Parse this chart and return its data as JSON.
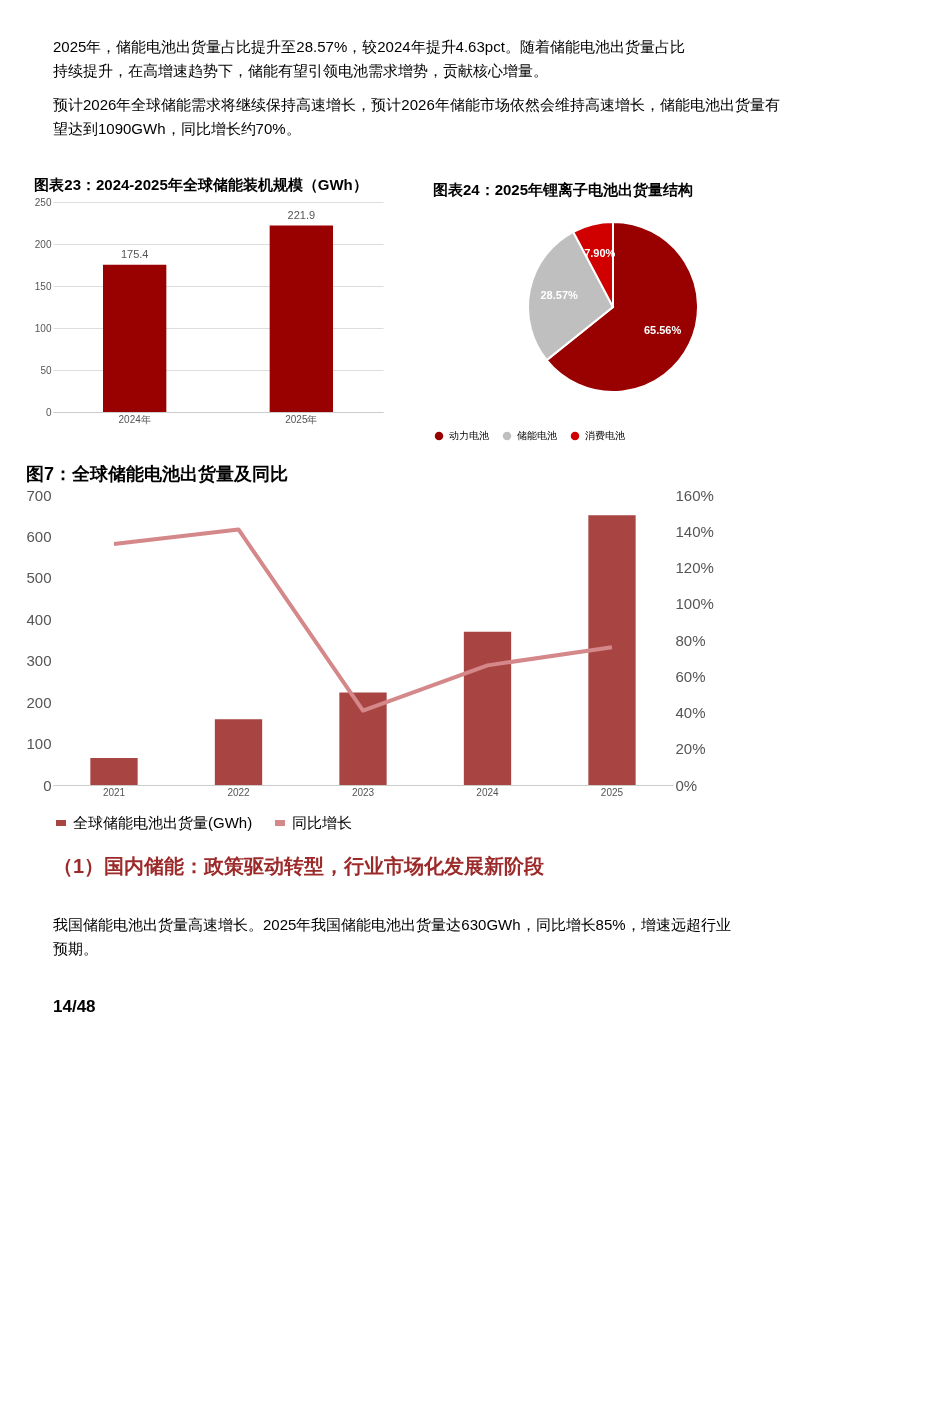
{
  "chart_data": [
    {
      "type": "bar",
      "title": "图表23：2024-2025年全球储能装机规模（GWh）",
      "annotations": [
        "2025年，储能电池出货量占比提升至28.57%，较2024年提升4.63pct。随着储能电池出货量占比持续提升，在高增速趋势下，储能有望引领电池需求增势，贡献核心增量。",
        "预计2026年全球储能需求将继续保持高速增长，预计2026年储能市场依然会维持高速增长，储能电池出货量有望达到1090GWh，同比增长约70%。"
      ],
      "categories": [
        "2024年",
        "2025年"
      ],
      "values": [
        175.4,
        221.9
      ],
      "color": "#990000",
      "ylim": [
        0,
        250
      ],
      "yticks": [
        0,
        50,
        100,
        150,
        200,
        250
      ],
      "grid": "y",
      "data_labels": true
    },
    {
      "type": "pie",
      "title": "图表24：2025年锂离子电池出货量结构",
      "categories": [
        "动力电池",
        "储能电池",
        "消费电池"
      ],
      "values": [
        65.56,
        28.57,
        7.9
      ],
      "colors": [
        "#990000",
        "#bfbfbf",
        "#d00000"
      ],
      "value_labels": [
        "65.56%",
        "28.57%",
        "7.90%"
      ],
      "legend": "bottom"
    },
    {
      "type": "bar",
      "title": "图7：全球储能电池出货量及同比",
      "annotations": [
        "（1）国内储能：政策驱动转型，行业市场化发展新阶段",
        "我国储能电池出货量高速增长。2025年我国储能电池出货量达630GWh，同比增长85%，增速远超行业预期。",
        "14/48"
      ],
      "categories": [
        "2021",
        "2022",
        "2023",
        "2024",
        "2025"
      ],
      "series": [
        {
          "name": "全球储能电池出货量(GWh)",
          "type": "bar",
          "color": "#a84442",
          "values": [
            65,
            159,
            223,
            370,
            651
          ]
        },
        {
          "name": "同比增长",
          "type": "line",
          "axis": "y2",
          "color": "#d4888a",
          "values": [
            133,
            141,
            41,
            66,
            76
          ]
        }
      ],
      "ylim": [
        0,
        700
      ],
      "yticks": [
        0,
        100,
        200,
        300,
        400,
        500,
        600,
        700
      ],
      "y2lim": [
        0,
        160
      ],
      "y2ticks": [
        {
          "value": 0,
          "label": "0%"
        },
        {
          "value": 20,
          "label": "20%"
        },
        {
          "value": 40,
          "label": "40%"
        },
        {
          "value": 60,
          "label": "60%"
        },
        {
          "value": 80,
          "label": "80%"
        },
        {
          "value": 100,
          "label": "100%"
        },
        {
          "value": 120,
          "label": "120%"
        },
        {
          "value": 140,
          "label": "140%"
        },
        {
          "value": 160,
          "label": "160%"
        }
      ],
      "legend": "bottom",
      "grid": false
    }
  ]
}
